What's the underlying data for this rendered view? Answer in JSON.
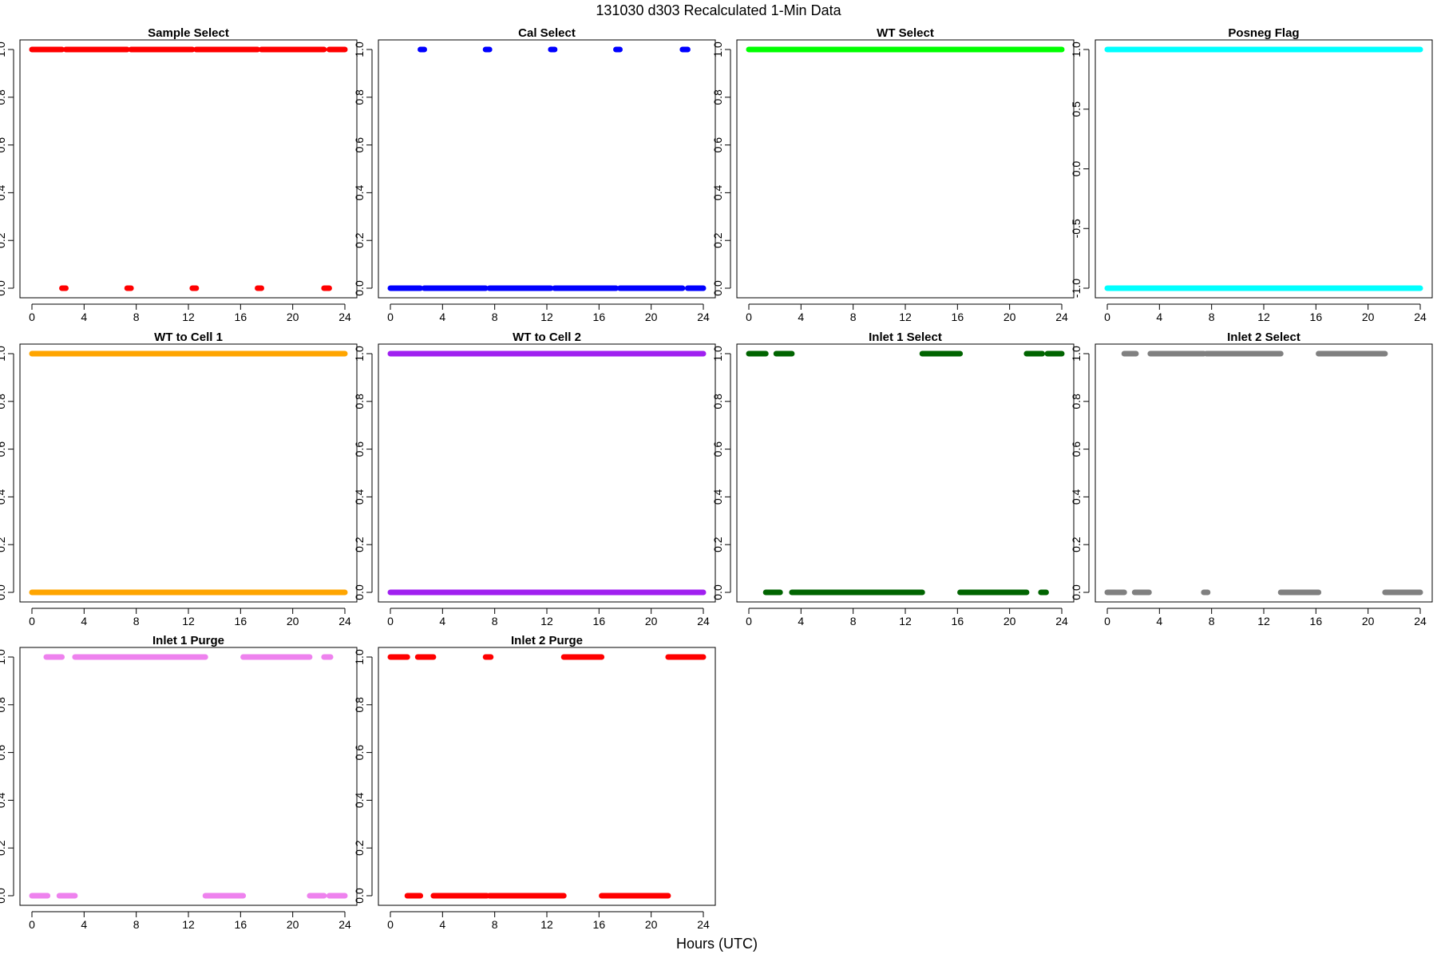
{
  "figure": {
    "title": "131030   d303   Recalculated 1-Min Data",
    "xlabel": "Hours (UTC)"
  },
  "chart_data": [
    {
      "type": "scatter",
      "title": "Sample Select",
      "color": "#ff0000",
      "xlim": [
        0,
        24
      ],
      "ylim": [
        0,
        1
      ],
      "xticks": [
        "0",
        "4",
        "8",
        "12",
        "16",
        "20",
        "24"
      ],
      "yticks": [
        "0.0",
        "0.2",
        "0.4",
        "0.6",
        "0.8",
        "1.0"
      ],
      "series": [
        {
          "y": 1,
          "segments": [
            [
              0,
              2.3
            ],
            [
              2.6,
              7.3
            ],
            [
              7.6,
              12.3
            ],
            [
              12.6,
              17.3
            ],
            [
              17.6,
              22.4
            ],
            [
              22.8,
              24
            ]
          ]
        },
        {
          "y": 0,
          "segments": [
            [
              2.3,
              2.6
            ],
            [
              7.3,
              7.6
            ],
            [
              12.3,
              12.6
            ],
            [
              17.3,
              17.6
            ],
            [
              22.4,
              22.8
            ]
          ]
        }
      ]
    },
    {
      "type": "scatter",
      "title": "Cal Select",
      "color": "#0000ff",
      "xlim": [
        0,
        24
      ],
      "ylim": [
        0,
        1
      ],
      "xticks": [
        "0",
        "4",
        "8",
        "12",
        "16",
        "20",
        "24"
      ],
      "yticks": [
        "0.0",
        "0.2",
        "0.4",
        "0.6",
        "0.8",
        "1.0"
      ],
      "series": [
        {
          "y": 1,
          "segments": [
            [
              2.3,
              2.6
            ],
            [
              7.3,
              7.6
            ],
            [
              12.3,
              12.6
            ],
            [
              17.3,
              17.6
            ],
            [
              22.4,
              22.8
            ]
          ]
        },
        {
          "y": 0,
          "segments": [
            [
              0,
              2.3
            ],
            [
              2.6,
              7.3
            ],
            [
              7.6,
              12.3
            ],
            [
              12.6,
              17.3
            ],
            [
              17.6,
              22.4
            ],
            [
              22.8,
              24
            ]
          ]
        }
      ]
    },
    {
      "type": "scatter",
      "title": "WT Select",
      "color": "#00ff00",
      "xlim": [
        0,
        24
      ],
      "ylim": [
        0,
        1
      ],
      "xticks": [
        "0",
        "4",
        "8",
        "12",
        "16",
        "20",
        "24"
      ],
      "yticks": [
        "0.0",
        "0.2",
        "0.4",
        "0.6",
        "0.8",
        "1.0"
      ],
      "series": [
        {
          "y": 1,
          "segments": [
            [
              0,
              24
            ]
          ]
        }
      ]
    },
    {
      "type": "scatter",
      "title": "Posneg Flag",
      "color": "#00ffff",
      "xlim": [
        0,
        24
      ],
      "ylim": [
        -1,
        1
      ],
      "xticks": [
        "0",
        "4",
        "8",
        "12",
        "16",
        "20",
        "24"
      ],
      "yticks": [
        "-1.0",
        "-0.5",
        "0.0",
        "0.5",
        "1.0"
      ],
      "series": [
        {
          "y": 1,
          "segments": [
            [
              0,
              24
            ]
          ]
        },
        {
          "y": -1,
          "segments": [
            [
              0,
              24
            ]
          ]
        }
      ]
    },
    {
      "type": "scatter",
      "title": "WT to Cell 1",
      "color": "#ffa500",
      "xlim": [
        0,
        24
      ],
      "ylim": [
        0,
        1
      ],
      "xticks": [
        "0",
        "4",
        "8",
        "12",
        "16",
        "20",
        "24"
      ],
      "yticks": [
        "0.0",
        "0.2",
        "0.4",
        "0.6",
        "0.8",
        "1.0"
      ],
      "series": [
        {
          "y": 1,
          "segments": [
            [
              0,
              24
            ]
          ]
        },
        {
          "y": 0,
          "segments": [
            [
              0,
              24
            ]
          ]
        }
      ]
    },
    {
      "type": "scatter",
      "title": "WT to Cell 2",
      "color": "#a020f0",
      "xlim": [
        0,
        24
      ],
      "ylim": [
        0,
        1
      ],
      "xticks": [
        "0",
        "4",
        "8",
        "12",
        "16",
        "20",
        "24"
      ],
      "yticks": [
        "0.0",
        "0.2",
        "0.4",
        "0.6",
        "0.8",
        "1.0"
      ],
      "series": [
        {
          "y": 1,
          "segments": [
            [
              0,
              24
            ]
          ]
        },
        {
          "y": 0,
          "segments": [
            [
              0,
              24
            ]
          ]
        }
      ]
    },
    {
      "type": "scatter",
      "title": "Inlet 1 Select",
      "color": "#006400",
      "xlim": [
        0,
        24
      ],
      "ylim": [
        0,
        1
      ],
      "xticks": [
        "0",
        "4",
        "8",
        "12",
        "16",
        "20",
        "24"
      ],
      "yticks": [
        "0.0",
        "0.2",
        "0.4",
        "0.6",
        "0.8",
        "1.0"
      ],
      "series": [
        {
          "y": 1,
          "segments": [
            [
              0,
              1.3
            ],
            [
              2.1,
              3.3
            ],
            [
              13.3,
              16.2
            ],
            [
              21.3,
              22.5
            ],
            [
              22.9,
              24
            ]
          ]
        },
        {
          "y": 0,
          "segments": [
            [
              1.3,
              2.4
            ],
            [
              3.3,
              13.3
            ],
            [
              16.2,
              21.3
            ],
            [
              22.4,
              22.8
            ]
          ]
        }
      ]
    },
    {
      "type": "scatter",
      "title": "Inlet 2 Select",
      "color": "#808080",
      "xlim": [
        0,
        24
      ],
      "ylim": [
        0,
        1
      ],
      "xticks": [
        "0",
        "4",
        "8",
        "12",
        "16",
        "20",
        "24"
      ],
      "yticks": [
        "0.0",
        "0.2",
        "0.4",
        "0.6",
        "0.8",
        "1.0"
      ],
      "series": [
        {
          "y": 1,
          "segments": [
            [
              1.3,
              2.2
            ],
            [
              3.3,
              7.4
            ],
            [
              7.6,
              13.3
            ],
            [
              16.2,
              21.3
            ]
          ]
        },
        {
          "y": 0,
          "segments": [
            [
              0,
              1.3
            ],
            [
              2.1,
              3.2
            ],
            [
              7.4,
              7.7
            ],
            [
              13.3,
              16.2
            ],
            [
              21.3,
              24
            ]
          ]
        }
      ]
    },
    {
      "type": "scatter",
      "title": "Inlet 1 Purge",
      "color": "#ee82ee",
      "xlim": [
        0,
        24
      ],
      "ylim": [
        0,
        1
      ],
      "xticks": [
        "0",
        "4",
        "8",
        "12",
        "16",
        "20",
        "24"
      ],
      "yticks": [
        "0.0",
        "0.2",
        "0.4",
        "0.6",
        "0.8",
        "1.0"
      ],
      "series": [
        {
          "y": 1,
          "segments": [
            [
              1.1,
              2.3
            ],
            [
              3.3,
              13.3
            ],
            [
              16.2,
              21.3
            ],
            [
              22.4,
              22.9
            ]
          ]
        },
        {
          "y": 0,
          "segments": [
            [
              0,
              1.2
            ],
            [
              2.1,
              3.3
            ],
            [
              13.3,
              16.2
            ],
            [
              21.3,
              22.4
            ],
            [
              22.8,
              24
            ]
          ]
        }
      ]
    },
    {
      "type": "scatter",
      "title": "Inlet 2 Purge",
      "color": "#ff0000",
      "xlim": [
        0,
        24
      ],
      "ylim": [
        0,
        1
      ],
      "xticks": [
        "0",
        "4",
        "8",
        "12",
        "16",
        "20",
        "24"
      ],
      "yticks": [
        "0.0",
        "0.2",
        "0.4",
        "0.6",
        "0.8",
        "1.0"
      ],
      "series": [
        {
          "y": 1,
          "segments": [
            [
              0,
              1.3
            ],
            [
              2.1,
              3.3
            ],
            [
              7.3,
              7.7
            ],
            [
              13.3,
              16.2
            ],
            [
              21.3,
              24
            ]
          ]
        },
        {
          "y": 0,
          "segments": [
            [
              1.3,
              2.3
            ],
            [
              3.3,
              7.4
            ],
            [
              7.6,
              13.3
            ],
            [
              16.2,
              21.3
            ]
          ]
        }
      ]
    }
  ]
}
